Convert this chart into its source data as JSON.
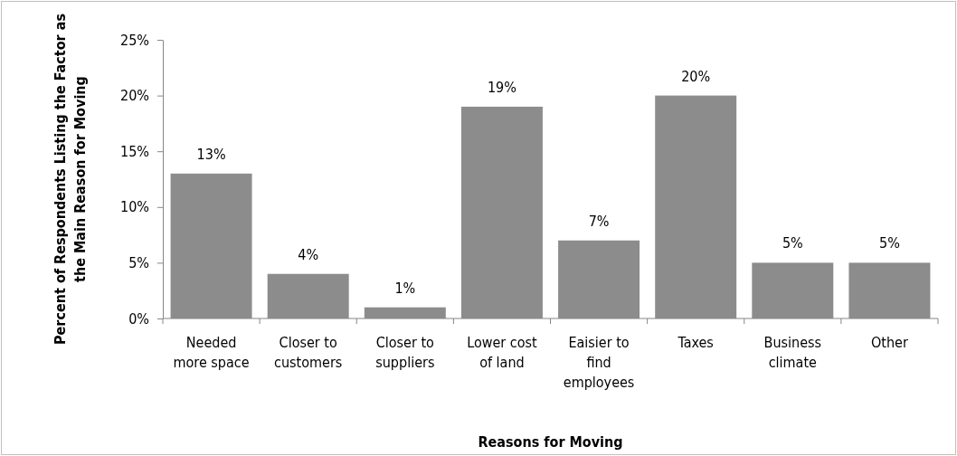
{
  "chart_data": {
    "type": "bar",
    "categories": [
      "Needed more space",
      "Closer to customers",
      "Closer to suppliers",
      "Lower cost of land",
      "Eaisier to find employees",
      "Taxes",
      "Business climate",
      "Other"
    ],
    "values": [
      13,
      4,
      1,
      19,
      7,
      20,
      5,
      5
    ],
    "color": "#8c8c8c",
    "value_labels": [
      "13%",
      "4%",
      "1%",
      "19%",
      "7%",
      "20%",
      "5%",
      "5%"
    ],
    "xlabel": "Reasons for Moving",
    "ylabel": "Percent of Respondents Listing the Factor as the Main Reason for Moving",
    "ylim": [
      0,
      25
    ],
    "yticks": [
      {
        "value": 0,
        "label": "0%"
      },
      {
        "value": 5,
        "label": "5%"
      },
      {
        "value": 10,
        "label": "10%"
      },
      {
        "value": 15,
        "label": "15%"
      },
      {
        "value": 20,
        "label": "20%"
      },
      {
        "value": 25,
        "label": "25%"
      }
    ],
    "grid": false
  }
}
